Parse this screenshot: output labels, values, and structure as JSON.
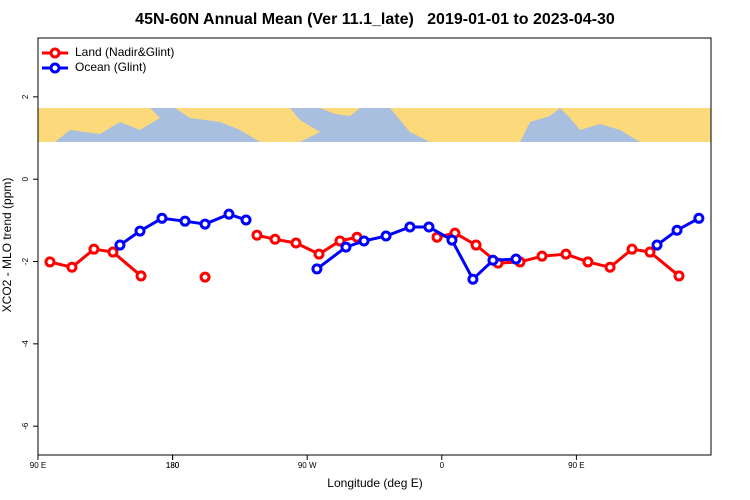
{
  "chart_data": {
    "type": "line",
    "title": "45N-60N Annual Mean (Ver 11.1_late)   2019-01-01 to 2023-04-30",
    "x_label": "Longitude (deg E)",
    "y_label": "XCO2 - MLO trend (ppm)",
    "xlim": [
      90,
      540
    ],
    "xticks": [
      {
        "value": 90,
        "label": "90 E"
      },
      180,
      {
        "value": 270,
        "label": "90 W"
      },
      {
        "value": 360,
        "label": "0"
      },
      {
        "value": 450,
        "label": "90 E"
      },
      180
    ],
    "ylim": [
      -6.7,
      3.43
    ],
    "yticks": [
      2,
      0,
      -2,
      -4,
      -6
    ],
    "legend": "top-left",
    "series": [
      {
        "name": "Land (Nadir&Glint)",
        "color": "#ff0000",
        "x": [
          98,
          112.7,
          127.4,
          140.1,
          158.9,
          null,
          201.7,
          null,
          236.4,
          248.5,
          262.5,
          277.9,
          291.9,
          303.3,
          null,
          356.8,
          368.8,
          382.9,
          397.6,
          412.3,
          427,
          443,
          457.7,
          472.5,
          487.2,
          499.2,
          518.6
        ],
        "values": [
          -2.01,
          -2.14,
          -1.7,
          -1.77,
          -2.35,
          null,
          -2.38,
          null,
          -1.36,
          -1.46,
          -1.55,
          -1.82,
          -1.5,
          -1.41,
          null,
          -1.41,
          -1.31,
          -1.6,
          -2.04,
          -2.01,
          -1.87,
          -1.82,
          -2.01,
          -2.14,
          -1.7,
          -1.77,
          -2.35
        ]
      },
      {
        "name": "Ocean (Glint)",
        "color": "#0000ff",
        "x": [
          144.8,
          158.2,
          172.9,
          188.3,
          201.7,
          217.7,
          229.1,
          null,
          276.5,
          295.9,
          308,
          322.7,
          338.7,
          351.4,
          366.8,
          380.8,
          394.2,
          409.6,
          null,
          503.9,
          517.3,
          531.9
        ],
        "values": [
          -1.6,
          -1.26,
          -0.95,
          -1.02,
          -1.09,
          -0.85,
          -0.99,
          null,
          -2.18,
          -1.65,
          -1.5,
          -1.38,
          -1.16,
          -1.16,
          -1.48,
          -2.43,
          -1.97,
          -1.94,
          null,
          -1.6,
          -1.24,
          -0.95
        ]
      }
    ]
  }
}
